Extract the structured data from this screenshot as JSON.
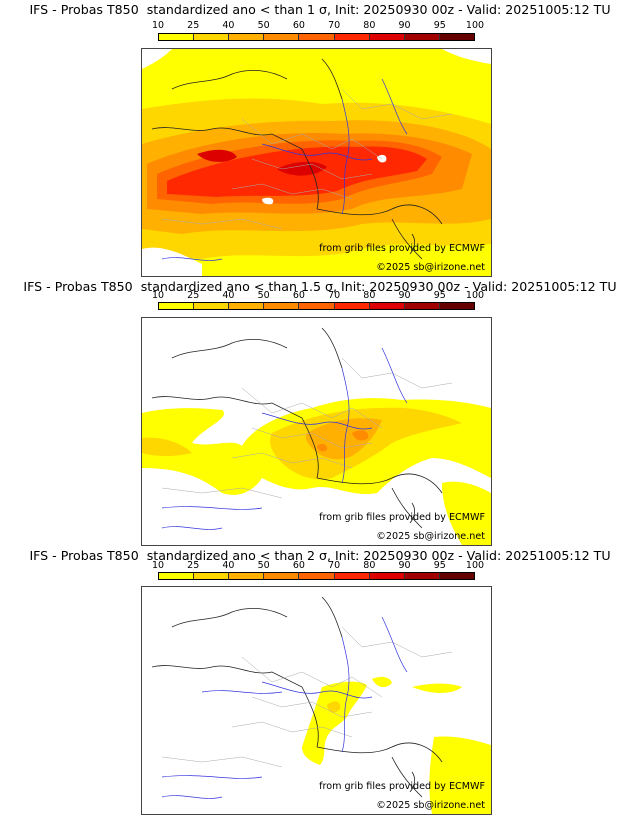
{
  "panels": [
    {
      "title": "IFS - Probas T850  standardized ano < than 1 σ, Init: 20250930 00z - Valid: 20251005:12 TU",
      "threshold_sigma": 1,
      "source_credit": "from grib files provided by ECMWF",
      "copyright": "©2025 sb@irizone.net"
    },
    {
      "title": "IFS - Probas T850  standardized ano < than 1.5 σ, Init: 20250930 00z - Valid: 20251005:12 TU",
      "threshold_sigma": 1.5,
      "source_credit": "from grib files provided by ECMWF",
      "copyright": "©2025 sb@irizone.net"
    },
    {
      "title": "IFS - Probas T850  standardized ano < than 2 σ, Init: 20250930 00z - Valid: 20251005:12 TU",
      "threshold_sigma": 2,
      "source_credit": "from grib files provided by ECMWF",
      "copyright": "©2025 sb@irizone.net"
    }
  ],
  "colorbar": {
    "labels": [
      "10",
      "25",
      "40",
      "50",
      "60",
      "70",
      "80",
      "90",
      "95",
      "100"
    ],
    "colors": [
      "#ffff00",
      "#ffd700",
      "#ffb000",
      "#ff8c00",
      "#ff6400",
      "#ff2800",
      "#dc0000",
      "#a00000",
      "#640000"
    ]
  }
}
